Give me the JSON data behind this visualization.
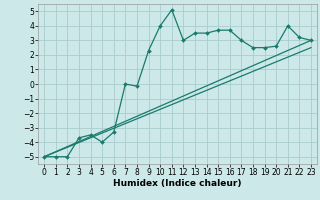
{
  "title": "",
  "xlabel": "Humidex (Indice chaleur)",
  "xlim": [
    -0.5,
    23.5
  ],
  "ylim": [
    -5.5,
    5.5
  ],
  "xticks": [
    0,
    1,
    2,
    3,
    4,
    5,
    6,
    7,
    8,
    9,
    10,
    11,
    12,
    13,
    14,
    15,
    16,
    17,
    18,
    19,
    20,
    21,
    22,
    23
  ],
  "yticks": [
    -5,
    -4,
    -3,
    -2,
    -1,
    0,
    1,
    2,
    3,
    4,
    5
  ],
  "bg_color": "#cce8e8",
  "line_color": "#1a7a6e",
  "grid_color": "#aacccc",
  "data_x": [
    0,
    1,
    2,
    3,
    4,
    5,
    6,
    7,
    8,
    9,
    10,
    11,
    12,
    13,
    14,
    15,
    16,
    17,
    18,
    19,
    20,
    21,
    22,
    23
  ],
  "data_y": [
    -5.0,
    -5.0,
    -5.0,
    -3.7,
    -3.5,
    -4.0,
    -3.3,
    0.0,
    -0.15,
    2.3,
    4.0,
    5.1,
    3.0,
    3.5,
    3.5,
    3.7,
    3.7,
    3.0,
    2.5,
    2.5,
    2.6,
    4.0,
    3.2,
    3.0
  ],
  "ref_line1_x": [
    0,
    23
  ],
  "ref_line1_y": [
    -5.0,
    3.0
  ],
  "ref_line2_x": [
    0,
    23
  ],
  "ref_line2_y": [
    -5.0,
    2.5
  ],
  "tick_fontsize": 5.5,
  "xlabel_fontsize": 6.5
}
